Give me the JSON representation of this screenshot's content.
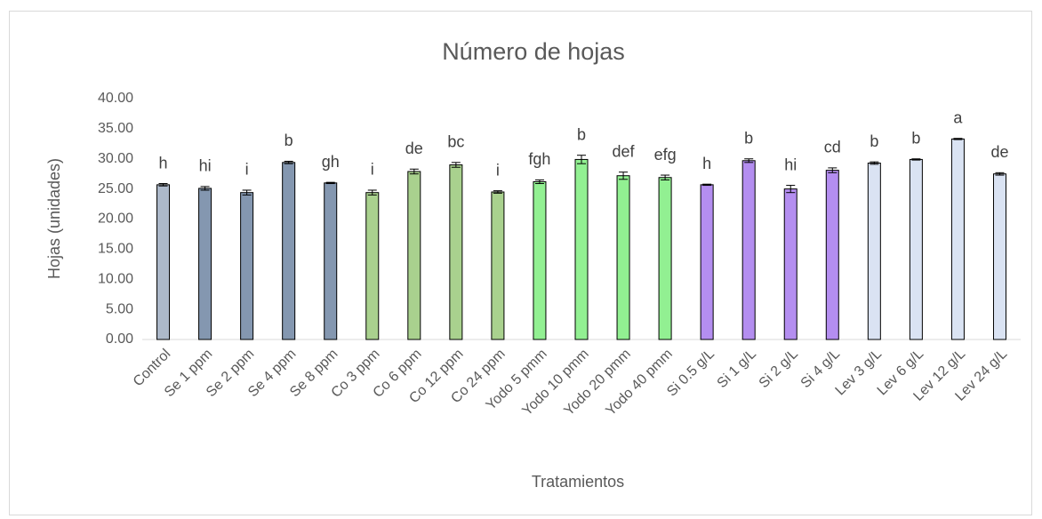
{
  "chart_data": {
    "type": "bar",
    "title": "Número de hojas",
    "xlabel": "Tratamientos",
    "ylabel": "Hojas (unidades)",
    "categories": [
      "Control",
      "Se 1 ppm",
      "Se 2 ppm",
      "Se 4 ppm",
      "Se 8 ppm",
      "Co 3 ppm",
      "Co 6 ppm",
      "Co 12 ppm",
      "Co 24 ppm",
      "Yodo 5 pmm",
      "Yodo 10 pmm",
      "Yodo 20 pmm",
      "Yodo 40 pmm",
      "Si 0.5 g/L",
      "Si 1 g/L",
      "Si 2 g/L",
      "Si 4 g/L",
      "Lev 3 g/L",
      "Lev 6 g/L",
      "Lev 12 g/L",
      "Lev 24 g/L"
    ],
    "series": [
      {
        "values": [
          25.7,
          25.1,
          24.4,
          29.4,
          26.0,
          24.4,
          27.9,
          29.0,
          24.5,
          26.2,
          29.9,
          27.2,
          26.9,
          25.7,
          29.7,
          25.0,
          28.1,
          29.3,
          29.9,
          33.3,
          27.5
        ],
        "errors": [
          0.2,
          0.3,
          0.4,
          0.2,
          0.1,
          0.4,
          0.4,
          0.4,
          0.2,
          0.3,
          0.7,
          0.6,
          0.4,
          0.1,
          0.3,
          0.6,
          0.4,
          0.2,
          0.1,
          0.1,
          0.2
        ],
        "colors": [
          "#adb9ca",
          "#8497b0",
          "#8497b0",
          "#8497b0",
          "#8497b0",
          "#a9d18e",
          "#a9d18e",
          "#a9d18e",
          "#a9d18e",
          "#92f092",
          "#92f092",
          "#92f092",
          "#92f092",
          "#b48ef0",
          "#b48ef0",
          "#b48ef0",
          "#b48ef0",
          "#dae3f3",
          "#dae3f3",
          "#dae3f3",
          "#dae3f3"
        ]
      }
    ],
    "letters": [
      "h",
      "hi",
      "i",
      "b",
      "gh",
      "i",
      "de",
      "bc",
      "i",
      "fgh",
      "b",
      "def",
      "efg",
      "h",
      "b",
      "hi",
      "cd",
      "b",
      "b",
      "a",
      "de"
    ],
    "ylim": [
      0,
      40
    ],
    "yticks": [
      {
        "value": 0,
        "label": "0.00"
      },
      {
        "value": 5,
        "label": "5.00"
      },
      {
        "value": 10,
        "label": "10.00"
      },
      {
        "value": 15,
        "label": "15.00"
      },
      {
        "value": 20,
        "label": "20.00"
      },
      {
        "value": 25,
        "label": "25.00"
      },
      {
        "value": 30,
        "label": "30.00"
      },
      {
        "value": 35,
        "label": "35.00"
      },
      {
        "value": 40,
        "label": "40.00"
      }
    ],
    "grid": false
  }
}
